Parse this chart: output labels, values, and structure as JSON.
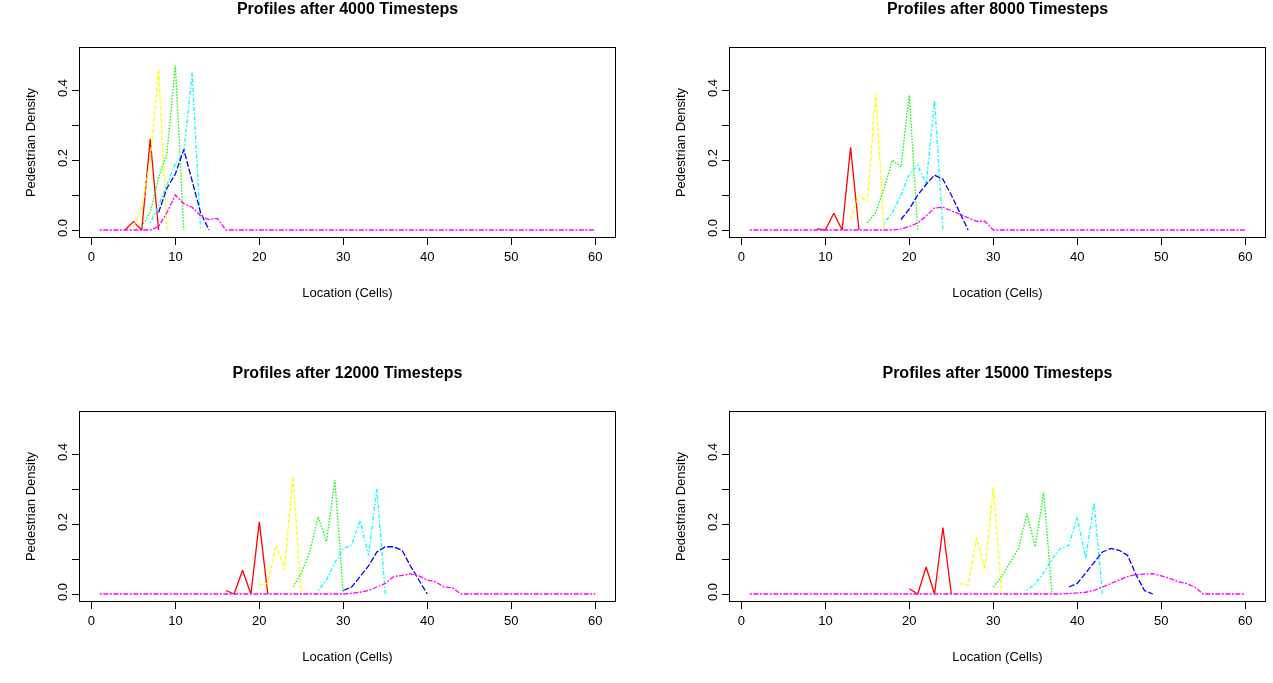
{
  "chart_data": [
    {
      "type": "line",
      "title": "Profiles after 4000 Timesteps",
      "xlabel": "Location (Cells)",
      "ylabel": "Pedestrian Density",
      "xlim": [
        -1.36,
        62.36
      ],
      "xticks": [
        0,
        10,
        20,
        30,
        40,
        50,
        60
      ],
      "ylim": [
        -0.02,
        0.52
      ],
      "yticks": [
        {
          "value": 0,
          "label": "0.0"
        },
        {
          "value": 0.1,
          "label": null
        },
        {
          "value": 0.2,
          "label": "0.2"
        },
        {
          "value": 0.3,
          "label": null
        },
        {
          "value": 0.4,
          "label": "0.4"
        }
      ],
      "series": [
        {
          "color": "#ff0000",
          "line_style": "solid",
          "x": [
            4,
            5,
            6,
            7,
            8
          ],
          "values": [
            0,
            0.024,
            0,
            0.26,
            0
          ]
        },
        {
          "color": "#ffff00",
          "line_style": "dashed",
          "x": [
            5,
            6,
            7,
            8,
            9
          ],
          "values": [
            0.01,
            0.06,
            0.2,
            0.46,
            0
          ]
        },
        {
          "color": "#00ff00",
          "line_style": "dotted",
          "x": [
            6,
            7,
            8,
            9,
            10,
            11
          ],
          "values": [
            0.01,
            0.05,
            0.15,
            0.22,
            0.47,
            0
          ]
        },
        {
          "color": "#00ffff",
          "line_style": "dashdot",
          "x": [
            7,
            8,
            9,
            10,
            11,
            12,
            13
          ],
          "values": [
            0.02,
            0.07,
            0.13,
            0.19,
            0.22,
            0.45,
            0
          ]
        },
        {
          "color": "#0000ff",
          "line_style": "longdash",
          "x": [
            8,
            9,
            10,
            11,
            12,
            13,
            14
          ],
          "values": [
            0.05,
            0.12,
            0.16,
            0.23,
            0.14,
            0.05,
            0
          ]
        },
        {
          "color": "#ff00ff",
          "line_style": "longdashdot",
          "x": [
            1,
            7,
            8,
            9,
            10,
            11,
            12,
            13,
            14,
            15,
            16,
            60
          ],
          "values": [
            0,
            0,
            0.01,
            0.05,
            0.1,
            0.075,
            0.065,
            0.04,
            0.03,
            0.033,
            0,
            0
          ]
        }
      ]
    },
    {
      "type": "line",
      "title": "Profiles after 8000 Timesteps",
      "xlabel": "Location (Cells)",
      "ylabel": "Pedestrian Density",
      "xlim": [
        -1.36,
        62.36
      ],
      "xticks": [
        0,
        10,
        20,
        30,
        40,
        50,
        60
      ],
      "ylim": [
        -0.02,
        0.52
      ],
      "yticks": [
        {
          "value": 0,
          "label": "0.0"
        },
        {
          "value": 0.1,
          "label": null
        },
        {
          "value": 0.2,
          "label": "0.2"
        },
        {
          "value": 0.3,
          "label": null
        },
        {
          "value": 0.4,
          "label": "0.4"
        }
      ],
      "series": [
        {
          "color": "#ff0000",
          "line_style": "solid",
          "x": [
            9,
            10,
            11,
            12,
            13,
            14
          ],
          "values": [
            0.003,
            0,
            0.048,
            0,
            0.236,
            0
          ]
        },
        {
          "color": "#ffff00",
          "line_style": "dashed",
          "x": [
            13,
            14,
            15,
            16,
            17
          ],
          "values": [
            0.03,
            0.1,
            0.08,
            0.39,
            0
          ]
        },
        {
          "color": "#00ff00",
          "line_style": "dotted",
          "x": [
            15,
            16,
            17,
            18,
            19,
            20,
            21
          ],
          "values": [
            0.02,
            0.05,
            0.12,
            0.2,
            0.18,
            0.385,
            0
          ]
        },
        {
          "color": "#00ffff",
          "line_style": "dashdot",
          "x": [
            17,
            18,
            19,
            20,
            21,
            22,
            23,
            24
          ],
          "values": [
            0.02,
            0.05,
            0.1,
            0.16,
            0.185,
            0.13,
            0.37,
            0
          ]
        },
        {
          "color": "#0000ff",
          "line_style": "longdash",
          "x": [
            19,
            20,
            21,
            22,
            23,
            24,
            25,
            26,
            27
          ],
          "values": [
            0.03,
            0.06,
            0.1,
            0.13,
            0.157,
            0.145,
            0.1,
            0.05,
            0
          ]
        },
        {
          "color": "#ff00ff",
          "line_style": "longdashdot",
          "x": [
            1,
            18,
            19,
            20,
            21,
            22,
            23,
            24,
            25,
            26,
            27,
            28,
            29,
            30,
            60
          ],
          "values": [
            0,
            0,
            0.003,
            0.01,
            0.02,
            0.04,
            0.063,
            0.065,
            0.055,
            0.045,
            0.035,
            0.025,
            0.025,
            0,
            0
          ]
        }
      ]
    },
    {
      "type": "line",
      "title": "Profiles after 12000 Timesteps",
      "xlabel": "Location (Cells)",
      "ylabel": "Pedestrian Density",
      "xlim": [
        -1.36,
        62.36
      ],
      "xticks": [
        0,
        10,
        20,
        30,
        40,
        50,
        60
      ],
      "ylim": [
        -0.02,
        0.52
      ],
      "yticks": [
        {
          "value": 0,
          "label": "0.0"
        },
        {
          "value": 0.1,
          "label": null
        },
        {
          "value": 0.2,
          "label": "0.2"
        },
        {
          "value": 0.3,
          "label": null
        },
        {
          "value": 0.4,
          "label": "0.4"
        }
      ],
      "series": [
        {
          "color": "#ff0000",
          "line_style": "solid",
          "x": [
            16,
            17,
            18,
            19,
            20,
            21
          ],
          "values": [
            0.01,
            0,
            0.068,
            0,
            0.206,
            0
          ]
        },
        {
          "color": "#ffff00",
          "line_style": "dashed",
          "x": [
            20,
            21,
            22,
            23,
            24,
            25
          ],
          "values": [
            0.027,
            0.03,
            0.14,
            0.07,
            0.336,
            0
          ]
        },
        {
          "color": "#00ff00",
          "line_style": "dotted",
          "x": [
            24,
            25,
            26,
            27,
            28,
            29,
            30
          ],
          "values": [
            0.02,
            0.06,
            0.12,
            0.22,
            0.15,
            0.325,
            0
          ]
        },
        {
          "color": "#00ffff",
          "line_style": "dashdot",
          "x": [
            27,
            28,
            29,
            30,
            31,
            32,
            33,
            34,
            35
          ],
          "values": [
            0.01,
            0.04,
            0.09,
            0.13,
            0.14,
            0.21,
            0.11,
            0.3,
            0
          ]
        },
        {
          "color": "#0000ff",
          "line_style": "longdash",
          "x": [
            30,
            31,
            32,
            33,
            34,
            35,
            36,
            37,
            38,
            39,
            40
          ],
          "values": [
            0.01,
            0.02,
            0.05,
            0.08,
            0.12,
            0.135,
            0.135,
            0.125,
            0.08,
            0.04,
            0
          ]
        },
        {
          "color": "#ff00ff",
          "line_style": "longdashdot",
          "x": [
            1,
            30,
            31,
            32,
            33,
            34,
            35,
            36,
            37,
            38,
            39,
            40,
            41,
            42,
            43,
            44,
            60
          ],
          "values": [
            0,
            0,
            0.002,
            0.005,
            0.01,
            0.02,
            0.03,
            0.05,
            0.053,
            0.058,
            0.052,
            0.04,
            0.035,
            0.02,
            0.018,
            0,
            0
          ]
        }
      ]
    },
    {
      "type": "line",
      "title": "Profiles after 15000 Timesteps",
      "xlabel": "Location (Cells)",
      "ylabel": "Pedestrian Density",
      "xlim": [
        -1.36,
        62.36
      ],
      "xticks": [
        0,
        10,
        20,
        30,
        40,
        50,
        60
      ],
      "ylim": [
        -0.02,
        0.52
      ],
      "yticks": [
        {
          "value": 0,
          "label": "0.0"
        },
        {
          "value": 0.1,
          "label": null
        },
        {
          "value": 0.2,
          "label": "0.2"
        },
        {
          "value": 0.3,
          "label": null
        },
        {
          "value": 0.4,
          "label": "0.4"
        }
      ],
      "series": [
        {
          "color": "#ff0000",
          "line_style": "solid",
          "x": [
            20,
            21,
            22,
            23,
            24,
            25
          ],
          "values": [
            0.015,
            0,
            0.077,
            0,
            0.19,
            0
          ]
        },
        {
          "color": "#ffff00",
          "line_style": "dashed",
          "x": [
            26,
            27,
            28,
            29,
            30,
            31
          ],
          "values": [
            0.03,
            0.025,
            0.16,
            0.07,
            0.305,
            0
          ]
        },
        {
          "color": "#00ff00",
          "line_style": "dotted",
          "x": [
            30,
            31,
            32,
            33,
            34,
            35,
            36,
            37
          ],
          "values": [
            0.02,
            0.05,
            0.09,
            0.13,
            0.23,
            0.135,
            0.29,
            0
          ]
        },
        {
          "color": "#00ffff",
          "line_style": "dashdot",
          "x": [
            34,
            35,
            36,
            37,
            38,
            39,
            40,
            41,
            42,
            43
          ],
          "values": [
            0.01,
            0.03,
            0.06,
            0.1,
            0.13,
            0.14,
            0.22,
            0.1,
            0.26,
            0
          ]
        },
        {
          "color": "#0000ff",
          "line_style": "longdash",
          "x": [
            39,
            40,
            41,
            42,
            43,
            44,
            45,
            46,
            47,
            48,
            49
          ],
          "values": [
            0.02,
            0.03,
            0.06,
            0.09,
            0.12,
            0.13,
            0.125,
            0.11,
            0.055,
            0.01,
            0
          ]
        },
        {
          "color": "#ff00ff",
          "line_style": "longdashdot",
          "x": [
            1,
            38,
            39,
            40,
            41,
            42,
            43,
            44,
            45,
            46,
            47,
            48,
            49,
            50,
            51,
            52,
            53,
            54,
            55,
            60
          ],
          "values": [
            0,
            0,
            0.001,
            0.003,
            0.005,
            0.01,
            0.02,
            0.03,
            0.04,
            0.05,
            0.055,
            0.057,
            0.058,
            0.052,
            0.045,
            0.035,
            0.03,
            0.02,
            0,
            0
          ]
        }
      ]
    }
  ]
}
